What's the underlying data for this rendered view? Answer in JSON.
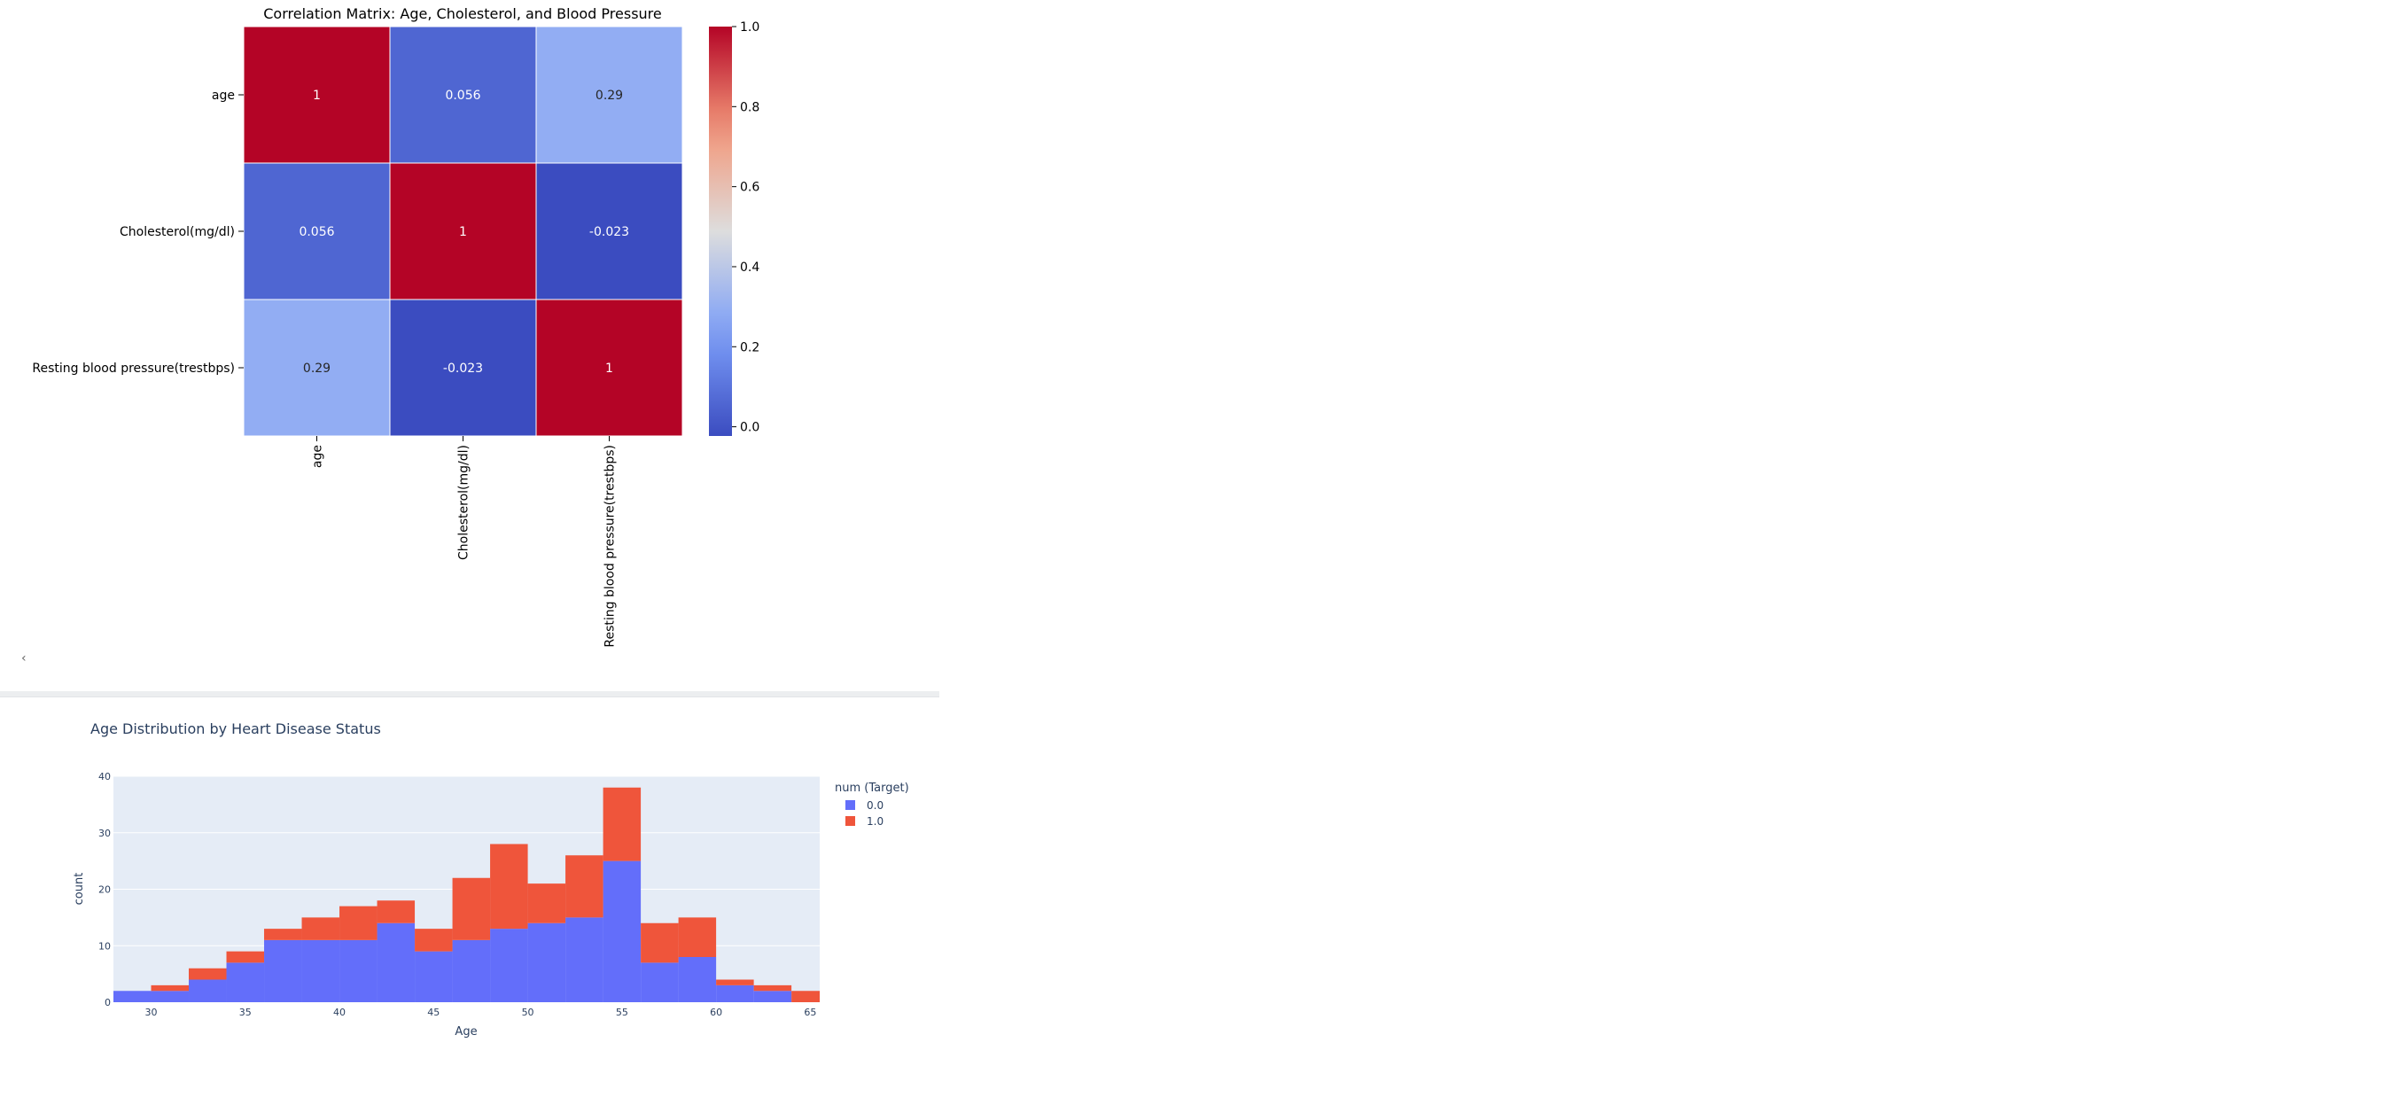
{
  "chart_data": [
    {
      "type": "heatmap",
      "title": "Correlation Matrix: Age, Cholesterol, and Blood Pressure",
      "rows": [
        "age",
        "Cholesterol(mg/dl)",
        "Resting blood pressure(trestbps)"
      ],
      "columns": [
        "age",
        "Cholesterol(mg/dl)",
        "Resting blood pressure(trestbps)"
      ],
      "values": [
        [
          1,
          0.056,
          0.29
        ],
        [
          0.056,
          1,
          -0.023
        ],
        [
          0.29,
          -0.023,
          1
        ]
      ],
      "cell_labels": [
        [
          "1",
          "0.056",
          "0.29"
        ],
        [
          "0.056",
          "1",
          "-0.023"
        ],
        [
          "0.29",
          "-0.023",
          "1"
        ]
      ],
      "colormap": "coolwarm",
      "color_range": [
        -0.023,
        1.0
      ],
      "colorbar_ticks": [
        "1.0",
        "0.8",
        "0.6",
        "0.4",
        "0.2",
        "0.0"
      ],
      "colorbar_tick_values": [
        1.0,
        0.8,
        0.6,
        0.4,
        0.2,
        0.0
      ]
    },
    {
      "type": "bar",
      "stacked": true,
      "title": "Age Distribution by Heart Disease Status",
      "xlabel": "Age",
      "ylabel": "count",
      "xlim": [
        28,
        65.5
      ],
      "ylim": [
        0,
        40
      ],
      "bin_width": 2,
      "bin_starts": [
        28,
        30,
        32,
        34,
        36,
        38,
        40,
        42,
        44,
        46,
        48,
        50,
        52,
        54,
        56,
        58,
        60,
        62,
        64
      ],
      "x_ticks": [
        "30",
        "35",
        "40",
        "45",
        "50",
        "55",
        "60",
        "65"
      ],
      "x_tick_values": [
        30,
        35,
        40,
        45,
        50,
        55,
        60,
        65
      ],
      "y_ticks": [
        "0",
        "10",
        "20",
        "30",
        "40"
      ],
      "y_tick_values": [
        0,
        10,
        20,
        30,
        40
      ],
      "legend_title": "num (Target)",
      "legend_position": "right",
      "series": [
        {
          "name": "0.0",
          "color": "#636efa",
          "values": [
            2,
            2,
            4,
            7,
            11,
            11,
            11,
            14,
            9,
            11,
            13,
            14,
            15,
            25,
            7,
            8,
            3,
            2,
            0
          ]
        },
        {
          "name": "1.0",
          "color": "#ef553b",
          "values": [
            0,
            1,
            2,
            2,
            2,
            4,
            6,
            4,
            4,
            11,
            15,
            7,
            11,
            13,
            7,
            7,
            1,
            1,
            2
          ]
        }
      ],
      "plot_background": "#e5ecf6",
      "grid": true
    }
  ],
  "ui": {
    "collapse_marker": "‹"
  }
}
